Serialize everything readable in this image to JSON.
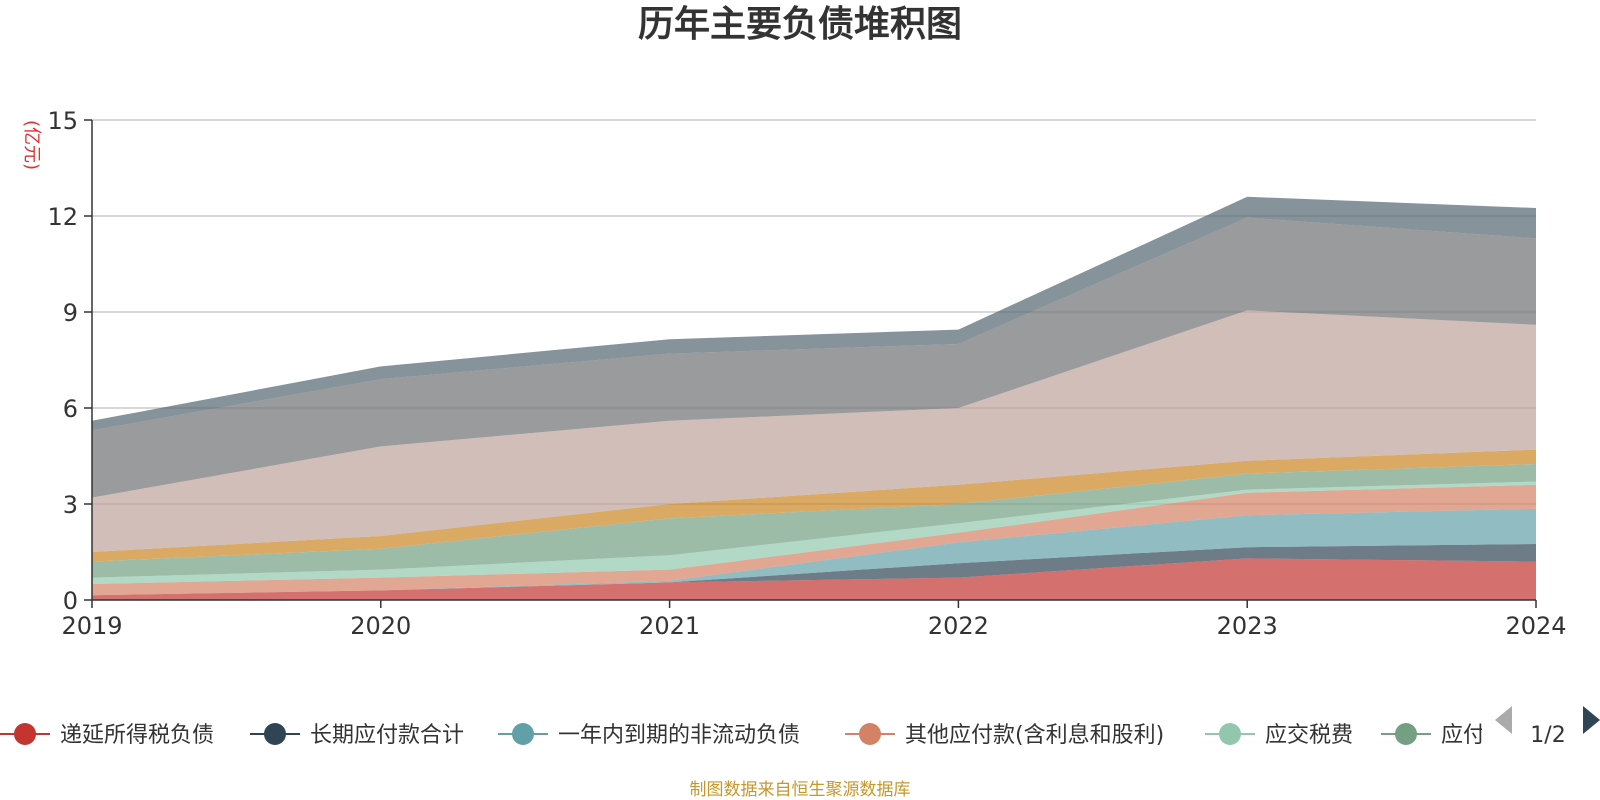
{
  "chart_data": {
    "type": "area",
    "title": "历年主要负债堆积图",
    "unit_label": "(亿元)",
    "x": [
      "2019",
      "2020",
      "2021",
      "2022",
      "2023",
      "2024"
    ],
    "ylim": [
      0,
      15
    ],
    "yticks": [
      0,
      3,
      6,
      9,
      12,
      15
    ],
    "grid": true,
    "stacked": true,
    "series": [
      {
        "name": "递延所得税负债",
        "color": "#c23531",
        "values": [
          0.15,
          0.3,
          0.55,
          0.7,
          1.3,
          1.2
        ]
      },
      {
        "name": "长期应付款合计",
        "color": "#2f4554",
        "values": [
          0.0,
          0.0,
          0.0,
          0.45,
          0.35,
          0.55
        ]
      },
      {
        "name": "一年内到期的非流动负债",
        "color": "#61a0a8",
        "values": [
          0.0,
          0.0,
          0.05,
          0.65,
          1.0,
          1.1
        ]
      },
      {
        "name": "其他应付款(含利息和股利)",
        "color": "#d48265",
        "values": [
          0.35,
          0.4,
          0.35,
          0.3,
          0.7,
          0.75
        ]
      },
      {
        "name": "应交税费",
        "color": "#91c7ae",
        "values": [
          0.2,
          0.25,
          0.45,
          0.3,
          0.1,
          0.1
        ]
      },
      {
        "name": "应付职工薪酬",
        "color": "#749f83",
        "values": [
          0.5,
          0.65,
          1.15,
          0.6,
          0.5,
          0.55
        ]
      },
      {
        "name": "",
        "color": "#ca8622",
        "values": [
          0.3,
          0.4,
          0.45,
          0.6,
          0.4,
          0.45
        ]
      },
      {
        "name": "",
        "color": "#bda29a",
        "values": [
          1.7,
          2.8,
          2.6,
          2.4,
          4.7,
          3.9
        ]
      },
      {
        "name": "",
        "color": "#6e7074",
        "values": [
          2.1,
          2.1,
          2.1,
          2.0,
          2.9,
          2.7
        ]
      },
      {
        "name": "",
        "color": "#546570",
        "values": [
          0.3,
          0.4,
          0.45,
          0.45,
          0.65,
          0.95
        ]
      }
    ]
  },
  "legend": {
    "items": [
      {
        "label": "递延所得税负债",
        "color": "#c23531"
      },
      {
        "label": "长期应付款合计",
        "color": "#2f4554"
      },
      {
        "label": "一年内到期的非流动负债",
        "color": "#61a0a8"
      },
      {
        "label": "其他应付款(含利息和股利)",
        "color": "#d48265"
      },
      {
        "label": "应交税费",
        "color": "#91c7ae"
      },
      {
        "label": "应付",
        "color": "#749f83"
      }
    ],
    "page_indicator": "1/2",
    "prev_icon": "triangle-left-icon",
    "next_icon": "triangle-right-icon"
  },
  "source_note": "制图数据来自恒生聚源数据库"
}
